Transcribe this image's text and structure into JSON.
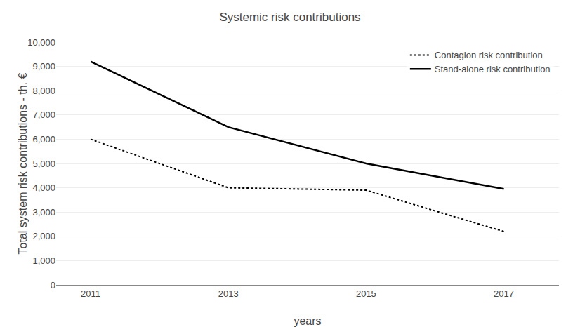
{
  "chart_data": {
    "type": "line",
    "title": "Systemic risk contributions",
    "xlabel": "years",
    "ylabel": "Total system risk contributions - th. €",
    "x": [
      2011,
      2013,
      2015,
      2017
    ],
    "series": [
      {
        "name": "Stand-alone risk contribution",
        "color": "black",
        "line_style": "solid",
        "values": [
          9200,
          6500,
          5000,
          3950
        ]
      },
      {
        "name": "Contagion risk contribution",
        "color": "black",
        "line_style": "dotted",
        "values": [
          6000,
          4000,
          3900,
          2200
        ]
      }
    ],
    "xlim": [
      2010.5,
      2017.8
    ],
    "xticks": [
      2011,
      2013,
      2015,
      2017
    ],
    "ylim": [
      0,
      10000
    ],
    "yticks": [
      0,
      {
        "value": 1000,
        "label": "1,000"
      },
      {
        "value": 2000,
        "label": "2,000"
      },
      {
        "value": 3000,
        "label": "3,000"
      },
      {
        "value": 4000,
        "label": "4,000"
      },
      {
        "value": 5000,
        "label": "5,000"
      },
      {
        "value": 6000,
        "label": "6,000"
      },
      {
        "value": 7000,
        "label": "7,000"
      },
      {
        "value": 8000,
        "label": "8,000"
      },
      {
        "value": 9000,
        "label": "9,000"
      },
      {
        "value": 10000,
        "label": "10,000"
      }
    ],
    "grid": true,
    "legend": "upper right"
  }
}
